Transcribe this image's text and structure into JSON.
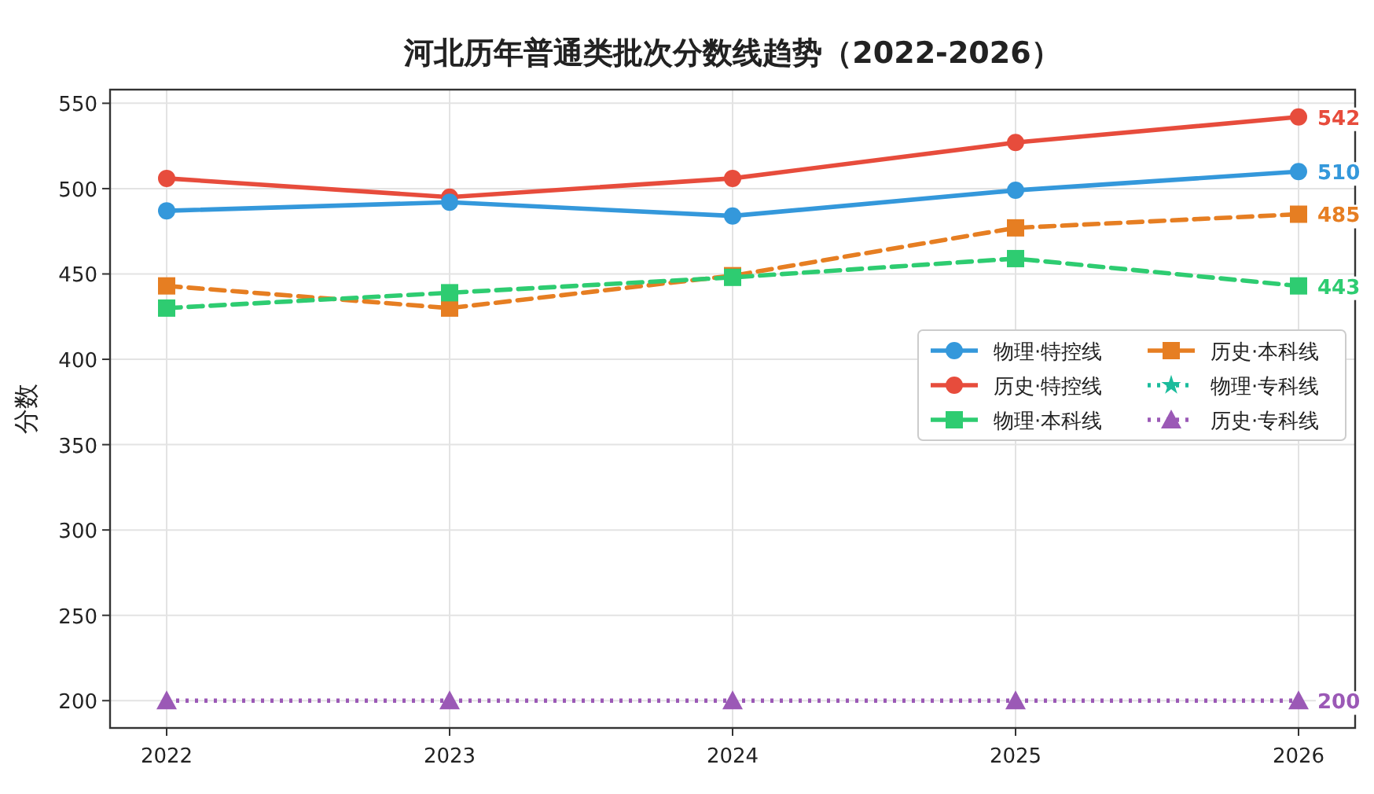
{
  "chart_data": {
    "type": "line",
    "title": "河北历年普通类批次分数线趋势（2022-2026）",
    "ylabel": "分数",
    "x": [
      2022,
      2023,
      2024,
      2025,
      2026
    ],
    "xlim": [
      2021.8,
      2026.2
    ],
    "xticks": [
      2022,
      2023,
      2024,
      2025,
      2026
    ],
    "ylim": [
      184,
      558
    ],
    "yticks": [
      200,
      250,
      300,
      350,
      400,
      450,
      500,
      550
    ],
    "grid": true,
    "legend": "right",
    "series": [
      {
        "name": "物理·特控线",
        "color": "#3498db",
        "marker": "circle",
        "line_style": "solid",
        "values": [
          487,
          492,
          484,
          499,
          510
        ],
        "value_labels": [
          null,
          null,
          null,
          null,
          "510"
        ]
      },
      {
        "name": "历史·特控线",
        "color": "#e74c3c",
        "marker": "circle",
        "line_style": "solid",
        "values": [
          506,
          495,
          506,
          527,
          542
        ],
        "value_labels": [
          null,
          null,
          null,
          null,
          "542"
        ]
      },
      {
        "name": "物理·本科线",
        "color": "#2ecc71",
        "marker": "square",
        "line_style": "dashed",
        "values": [
          430,
          439,
          448,
          459,
          443
        ],
        "value_labels": [
          null,
          null,
          null,
          null,
          "443"
        ]
      },
      {
        "name": "历史·本科线",
        "color": "#e67e22",
        "marker": "square",
        "line_style": "dashed",
        "values": [
          443,
          430,
          449,
          477,
          485
        ],
        "value_labels": [
          null,
          null,
          null,
          null,
          "485"
        ]
      },
      {
        "name": "物理·专科线",
        "color": "#1abc9c",
        "marker": "star",
        "line_style": "dotted",
        "values": [
          null,
          null,
          null,
          null,
          null
        ]
      },
      {
        "name": "历史·专科线",
        "color": "#9b59b6",
        "marker": "triangle",
        "line_style": "dotted",
        "values": [
          200,
          200,
          200,
          200,
          200
        ],
        "value_labels": [
          null,
          null,
          null,
          null,
          "200"
        ]
      }
    ]
  }
}
